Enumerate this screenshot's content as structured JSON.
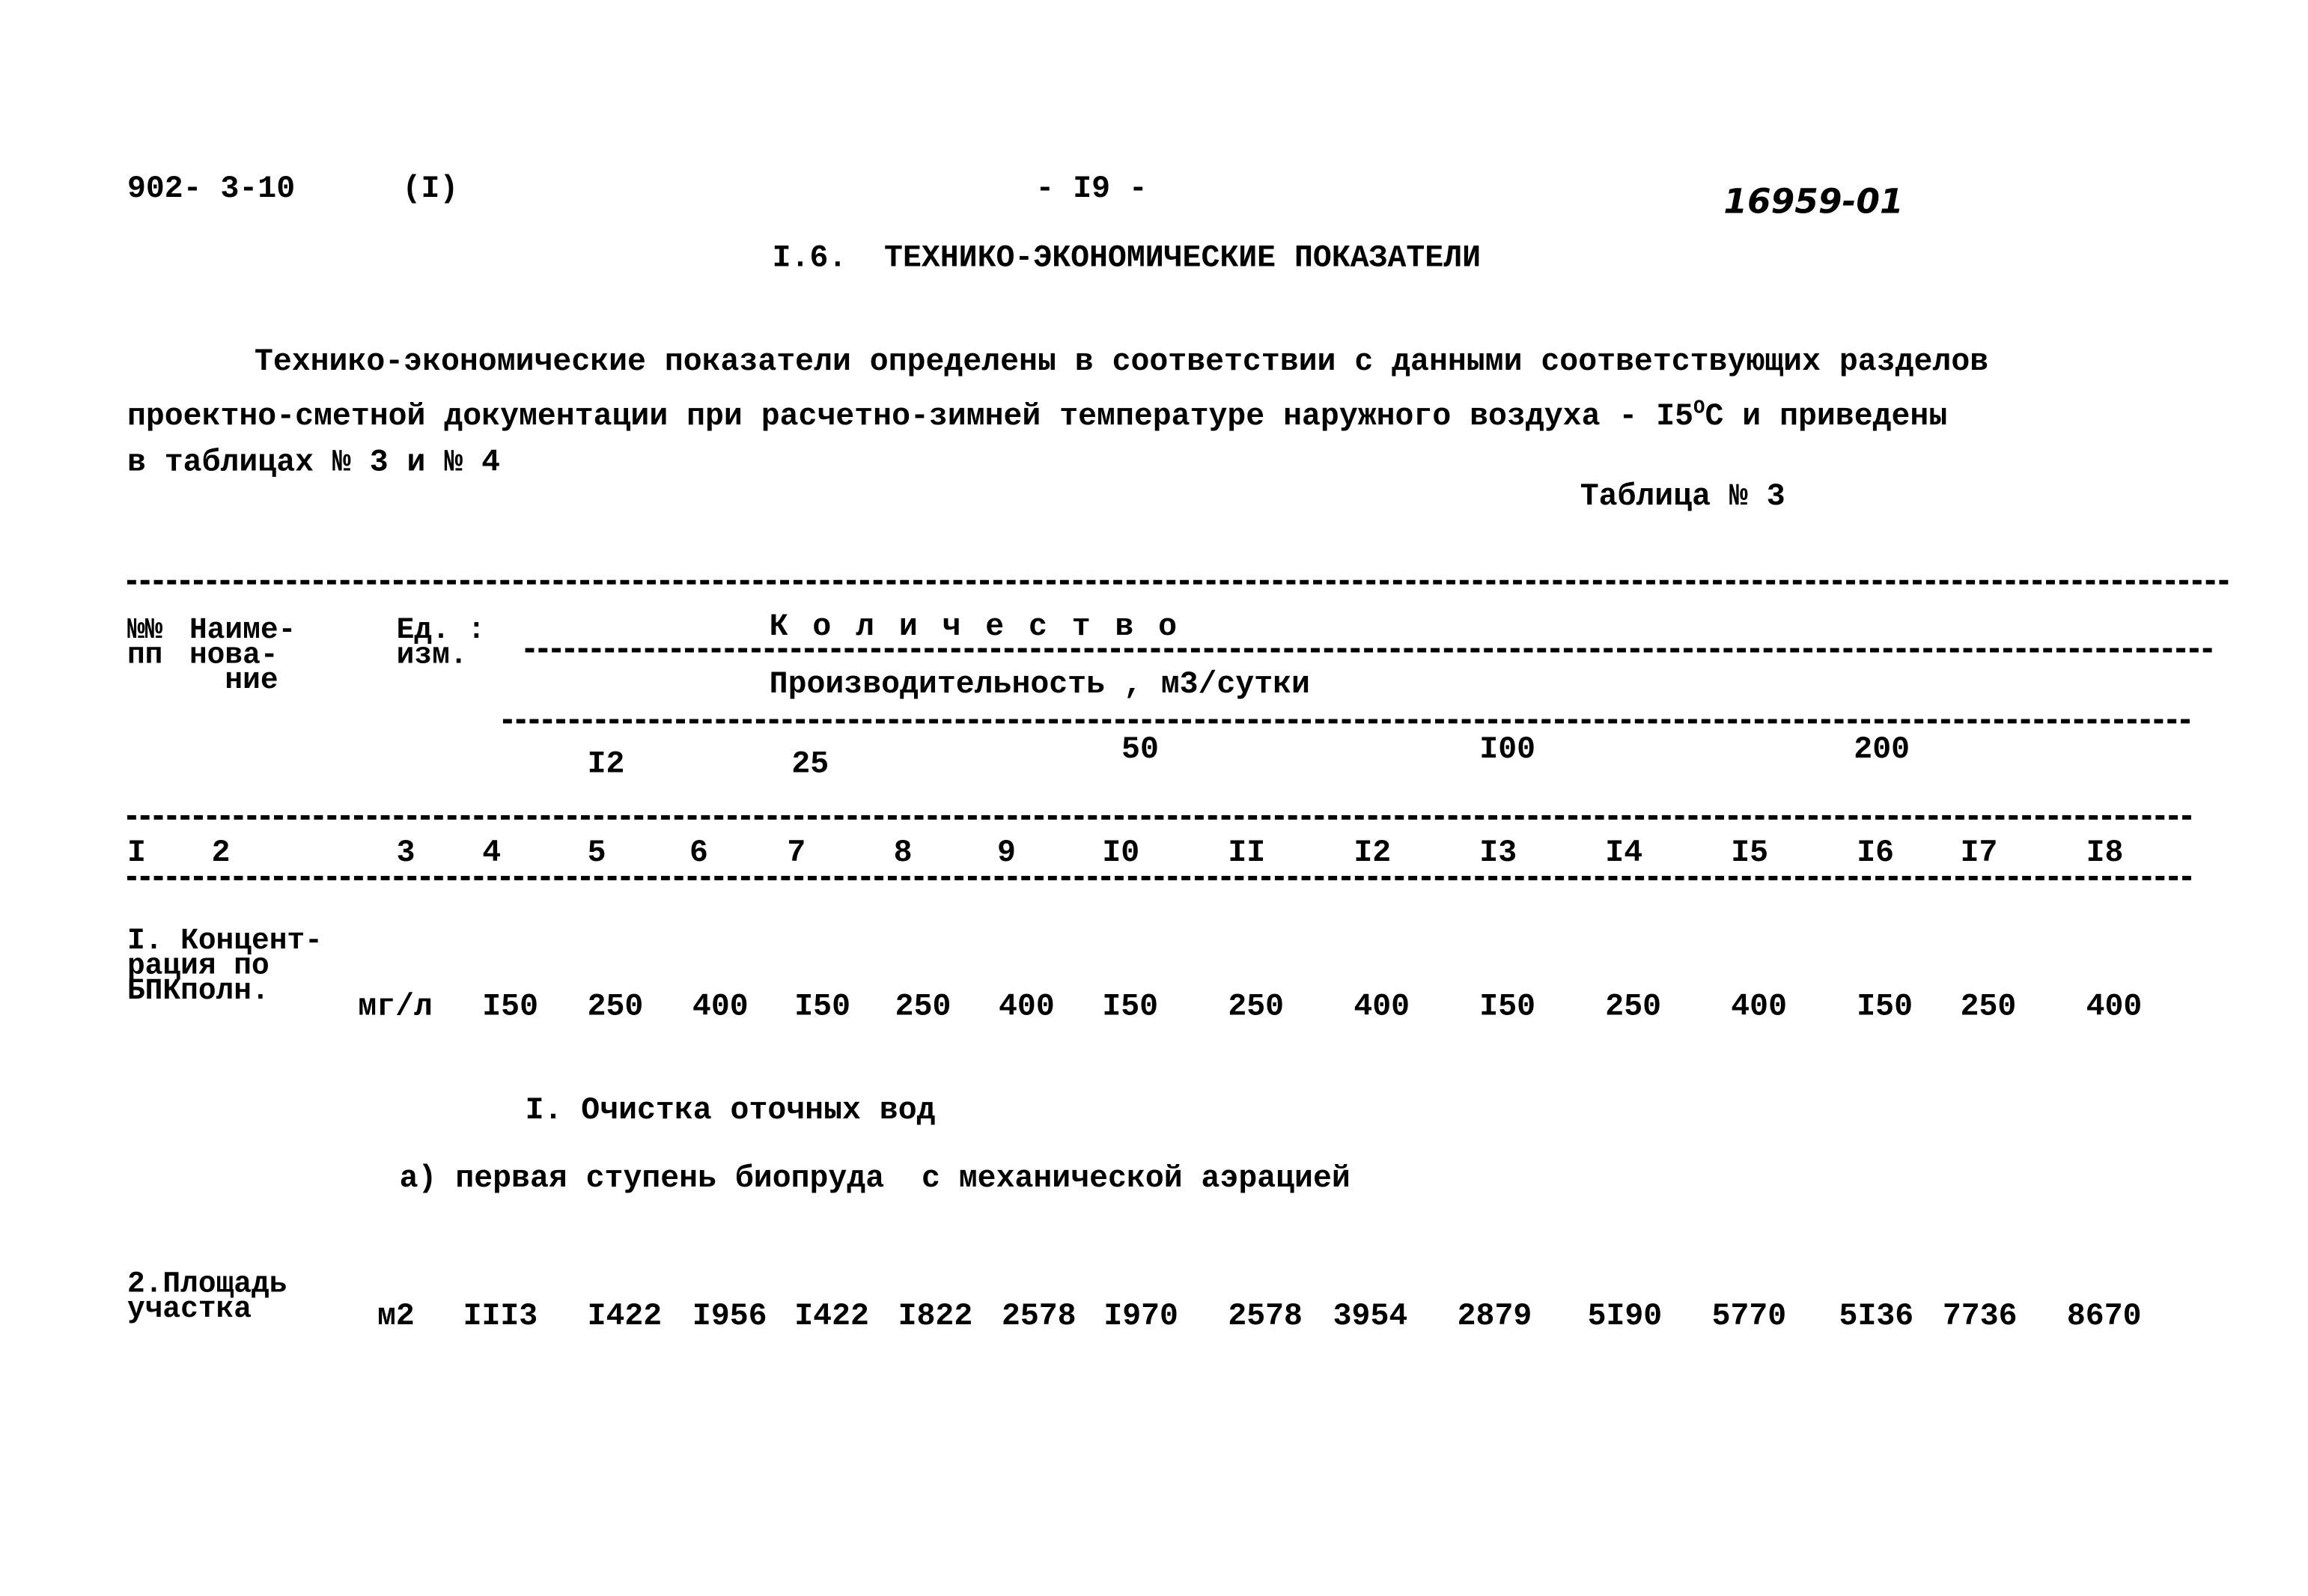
{
  "header": {
    "doc_code": "902- 3-10",
    "part": "(I)",
    "page": "- I9 -",
    "handwritten_number": "16959-01"
  },
  "section_title": "I.6.  ТЕХНИКО-ЭКОНОМИЧЕСКИЕ ПОКАЗАТЕЛИ",
  "paragraph": {
    "line1": "Технико-экономические показатели определены в соответствии с данными соответствующих разделов",
    "line2_a": "проектно-сметной документации при расчетно-зимней температуре наружного воздуха - I5",
    "line2_sup": "O",
    "line2_b": "C и приведены",
    "line3": "в таблицах № 3 и № 4"
  },
  "table_label": "Таблица № 3",
  "table": {
    "head": {
      "col_no": "№№\nпп",
      "col_name": "Наиме-\nнова-\n  ние",
      "col_unit": "Ед. :\nизм.",
      "quantity": "К о л и ч е с т в о",
      "productivity": "Производительность , м3/сутки",
      "capacities": [
        "I2",
        "25",
        "50",
        "I00",
        "200"
      ]
    },
    "column_numbers": [
      "I",
      "2",
      "3",
      "4",
      "5",
      "6",
      "7",
      "8",
      "9",
      "I0",
      "II",
      "I2",
      "I3",
      "I4",
      "I5",
      "I6",
      "I7",
      "I8"
    ],
    "rows": [
      {
        "name": "I. Концент-\nрация по\nБПКполн.",
        "unit": "мг/л",
        "values": [
          "I50",
          "250",
          "400",
          "I50",
          "250",
          "400",
          "I50",
          "250",
          "400",
          "I50",
          "250",
          "400",
          "I50",
          "250",
          "400"
        ]
      }
    ],
    "section": "I. Очистка оточных вод",
    "subsection": "а) первая ступень биопруда  с механической аэрацией",
    "rows2": [
      {
        "name": "2.Площадь\nучастка",
        "unit": "м2",
        "values": [
          "III3",
          "I422",
          "I956",
          "I422",
          "I822",
          "2578",
          "I970",
          "2578",
          "3954",
          "2879",
          "5I90",
          "5770",
          "5I36",
          "7736",
          "8670"
        ]
      }
    ]
  }
}
